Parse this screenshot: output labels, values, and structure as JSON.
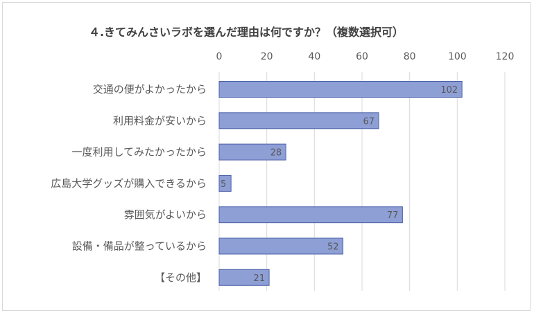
{
  "chart_data": {
    "type": "bar",
    "orientation": "horizontal",
    "title": "４.きてみんさいラボを選んだ理由は何ですか？（複数選択可）",
    "categories": [
      "交通の便がよかったから",
      "利用料金が安いから",
      "一度利用してみたかったから",
      "広島大学グッズが購入できるから",
      "雰囲気がよいから",
      "設備・備品が整っているから",
      "【その他】"
    ],
    "values": [
      102,
      67,
      28,
      5,
      77,
      52,
      21
    ],
    "xlim": [
      0,
      120
    ],
    "x_ticks": [
      0,
      20,
      40,
      60,
      80,
      100,
      120
    ],
    "x_axis_position": "top",
    "grid": true,
    "data_labels": true,
    "colors": {
      "bar_fill": "#8e9fd6",
      "bar_stroke": "#4a5fa8",
      "gridline": "#d9d9d9",
      "text": "#595959"
    }
  }
}
